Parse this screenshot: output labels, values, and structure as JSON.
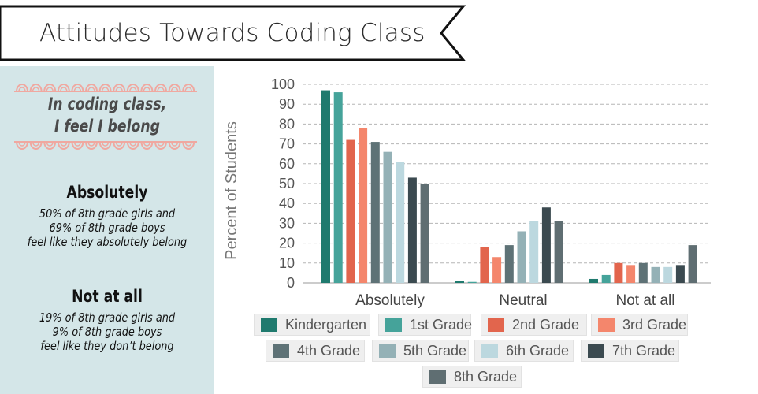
{
  "banner": {
    "title": "Attitudes Towards Coding Class"
  },
  "left_panel": {
    "quote_line1": "In coding class,",
    "quote_line2": "I feel I belong",
    "stat1": {
      "heading": "Absolutely",
      "line1": "50% of 8th grade girls and",
      "line2": "69% of 8th grade boys",
      "line3": "feel like they absolutely belong"
    },
    "stat2": {
      "heading": "Not at all",
      "line1": "19% of 8th grade girls and",
      "line2": "9% of 8th grade boys",
      "line3": "feel like they don’t belong"
    }
  },
  "colors": {
    "panel_bg": "#d4e6e8",
    "deco": "#f0a8a0",
    "series": [
      "#1f7a6e",
      "#45a39a",
      "#e2654d",
      "#f4866c",
      "#5e7276",
      "#94b1b6",
      "#bcd8df",
      "#3b4a50",
      "#5f6e72"
    ]
  },
  "chart_data": {
    "type": "bar",
    "title": "",
    "xlabel": "",
    "ylabel": "Percent of Students",
    "ylim": [
      0,
      100
    ],
    "yticks": [
      0,
      10,
      20,
      30,
      40,
      50,
      60,
      70,
      80,
      90,
      100
    ],
    "grid": true,
    "legend_placement": "bottom",
    "categories": [
      "Absolutely",
      "Neutral",
      "Not at all"
    ],
    "series": [
      {
        "name": "Kindergarten",
        "values": [
          97,
          1,
          2
        ]
      },
      {
        "name": "1st Grade",
        "values": [
          96,
          0.5,
          4
        ]
      },
      {
        "name": "2nd Grade",
        "values": [
          72,
          18,
          10
        ]
      },
      {
        "name": "3rd Grade",
        "values": [
          78,
          13,
          9
        ]
      },
      {
        "name": "4th Grade",
        "values": [
          71,
          19,
          10
        ]
      },
      {
        "name": "5th Grade",
        "values": [
          66,
          26,
          8
        ]
      },
      {
        "name": "6th Grade",
        "values": [
          61,
          31,
          8
        ]
      },
      {
        "name": "7th Grade",
        "values": [
          53,
          38,
          9
        ]
      },
      {
        "name": "8th Grade",
        "values": [
          50,
          31,
          19
        ]
      }
    ]
  }
}
